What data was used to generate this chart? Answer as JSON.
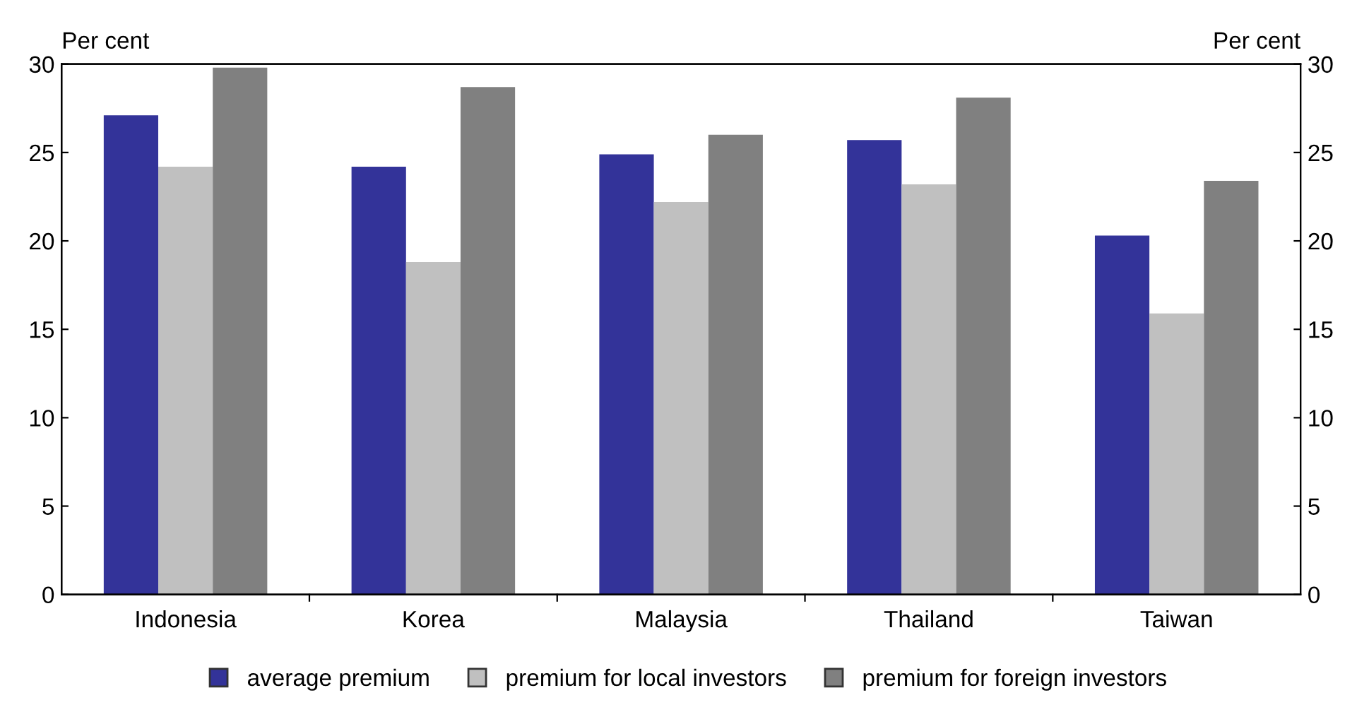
{
  "chart_data": {
    "type": "bar",
    "ylabel": "Per cent",
    "y2label": "Per cent",
    "categories": [
      "Indonesia",
      "Korea",
      "Malaysia",
      "Thailand",
      "Taiwan"
    ],
    "series": [
      {
        "name": "average premium",
        "color": "#333399",
        "values": [
          27.1,
          24.2,
          24.9,
          25.7,
          20.3
        ]
      },
      {
        "name": "premium for local investors",
        "color": "#c0c0c0",
        "values": [
          24.2,
          18.8,
          22.2,
          23.2,
          15.9
        ]
      },
      {
        "name": "premium for foreign investors",
        "color": "#808080",
        "values": [
          29.8,
          28.7,
          26.0,
          28.1,
          23.4
        ]
      }
    ],
    "ylim": [
      0,
      30
    ],
    "yticks": [
      0,
      5,
      10,
      15,
      20,
      25,
      30
    ],
    "y2lim": [
      0,
      30
    ],
    "y2ticks": [
      0,
      5,
      10,
      15,
      20,
      25,
      30
    ],
    "grid": false,
    "legend": "bottom"
  }
}
